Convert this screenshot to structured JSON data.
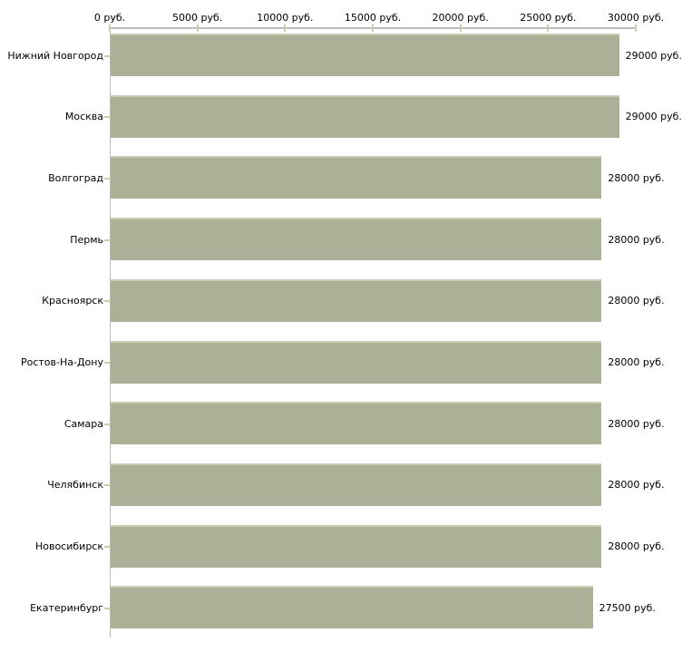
{
  "chart_data": {
    "type": "bar",
    "orientation": "horizontal",
    "title": "",
    "xlabel": "",
    "ylabel": "",
    "xlim": [
      0,
      30000
    ],
    "grid": "off",
    "legend": "none",
    "axis_position": "top",
    "categories": [
      "Нижний Новгород",
      "Москва",
      "Волгоград",
      "Пермь",
      "Красноярск",
      "Ростов-На-Дону",
      "Самара",
      "Челябинск",
      "Новосибирск",
      "Екатеринбург"
    ],
    "values": [
      29000,
      29000,
      28000,
      28000,
      28000,
      28000,
      28000,
      28000,
      28000,
      27500
    ],
    "value_labels": [
      "29000 руб.",
      "29000 руб.",
      "28000 руб.",
      "28000 руб.",
      "28000 руб.",
      "28000 руб.",
      "28000 руб.",
      "28000 руб.",
      "28000 руб.",
      "27500 руб."
    ],
    "x_ticks": [
      0,
      5000,
      10000,
      15000,
      20000,
      25000,
      30000
    ],
    "x_tick_labels": [
      "0 руб.",
      "5000 руб.",
      "10000 руб.",
      "15000 руб.",
      "20000 руб.",
      "25000 руб.",
      "30000 руб."
    ],
    "colors": {
      "bar_fill": "#abb197",
      "bar_top_edge": "#c9ccb5",
      "axis_line": "#bdbdbd",
      "tick_mark": "#ccd0a9",
      "text": "#000000",
      "background": "#ffffff"
    }
  }
}
